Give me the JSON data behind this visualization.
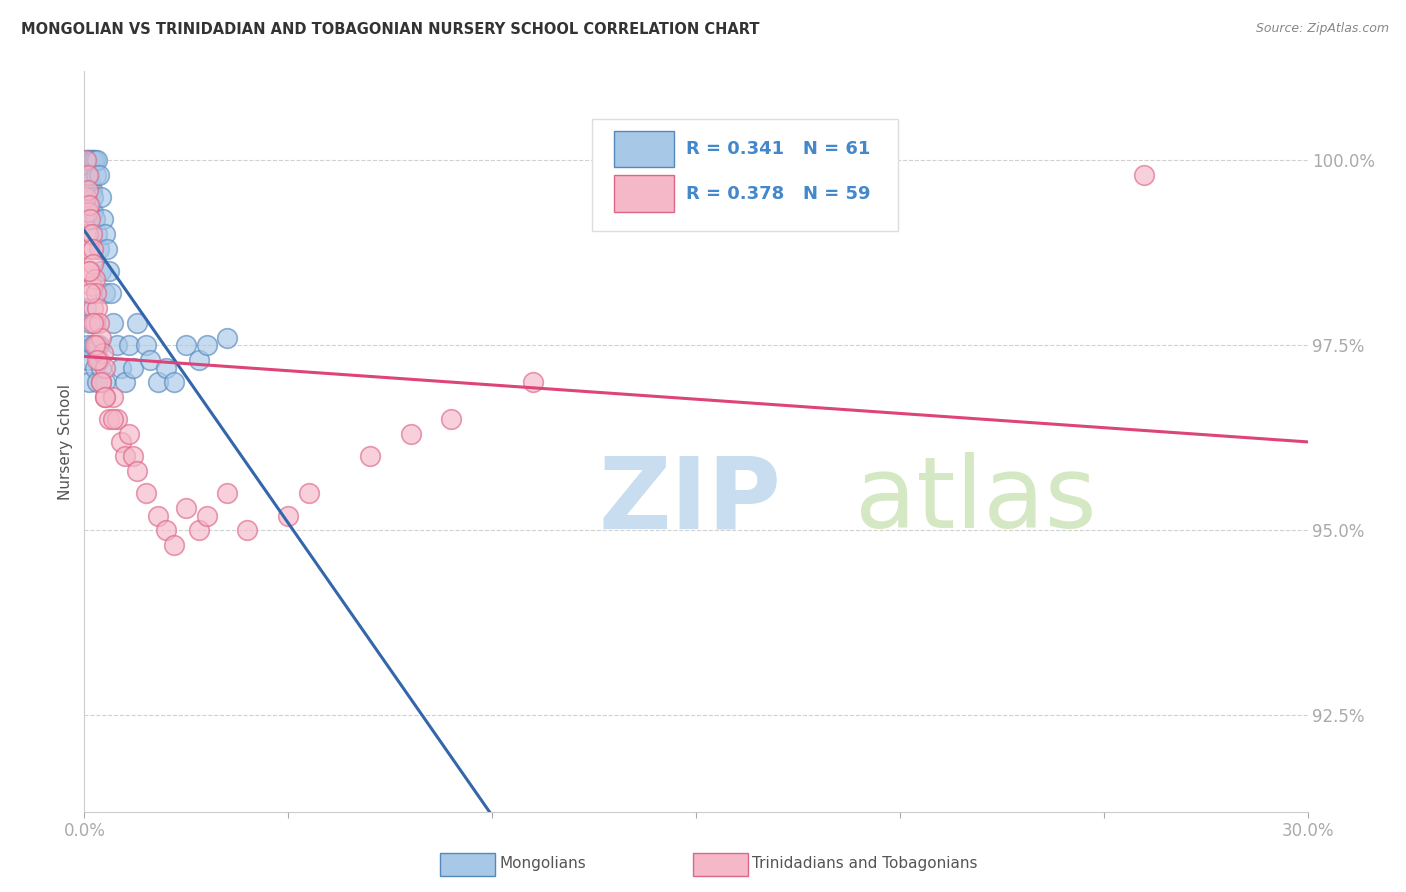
{
  "title": "MONGOLIAN VS TRINIDADIAN AND TOBAGONIAN NURSERY SCHOOL CORRELATION CHART",
  "source": "Source: ZipAtlas.com",
  "ylabel": "Nursery School",
  "ytick_labels": [
    "92.5%",
    "95.0%",
    "97.5%",
    "100.0%"
  ],
  "ytick_positions": [
    92.5,
    95.0,
    97.5,
    100.0
  ],
  "xmin": 0.0,
  "xmax": 30.0,
  "ymin": 91.2,
  "ymax": 101.2,
  "legend_mongolians": "Mongolians",
  "legend_trinidadian": "Trinidadians and Tobagonians",
  "r_mongolian": "0.341",
  "n_mongolian": "61",
  "r_trinidadian": "0.378",
  "n_trinidadian": "59",
  "color_blue_fill": "#a8c8e8",
  "color_blue_edge": "#5588bb",
  "color_pink_fill": "#f4b8c8",
  "color_pink_edge": "#dd6688",
  "color_blue_line": "#3366aa",
  "color_pink_line": "#dd4477",
  "color_blue_text": "#4488cc",
  "color_title": "#333333",
  "color_source": "#888888",
  "color_axis_labels": "#4488cc",
  "watermark_zip_color": "#c8ddf0",
  "watermark_atlas_color": "#d0e8d0",
  "mongolian_x": [
    0.05,
    0.05,
    0.05,
    0.08,
    0.08,
    0.1,
    0.1,
    0.1,
    0.12,
    0.12,
    0.15,
    0.15,
    0.15,
    0.18,
    0.18,
    0.2,
    0.2,
    0.22,
    0.22,
    0.25,
    0.25,
    0.28,
    0.3,
    0.3,
    0.35,
    0.35,
    0.4,
    0.4,
    0.45,
    0.5,
    0.5,
    0.55,
    0.6,
    0.65,
    0.7,
    0.8,
    0.9,
    1.0,
    1.1,
    1.2,
    1.3,
    1.5,
    1.6,
    1.8,
    2.0,
    2.2,
    2.5,
    2.8,
    3.0,
    3.5,
    0.05,
    0.08,
    0.1,
    0.12,
    0.15,
    0.2,
    0.25,
    0.3,
    0.35,
    0.4,
    0.5
  ],
  "mongolian_y": [
    100.0,
    99.8,
    99.5,
    100.0,
    99.7,
    100.0,
    99.9,
    99.6,
    100.0,
    99.8,
    100.0,
    99.7,
    99.4,
    100.0,
    99.6,
    100.0,
    99.5,
    100.0,
    99.3,
    100.0,
    99.2,
    99.8,
    100.0,
    99.0,
    99.8,
    98.8,
    99.5,
    98.5,
    99.2,
    99.0,
    98.2,
    98.8,
    98.5,
    98.2,
    97.8,
    97.5,
    97.2,
    97.0,
    97.5,
    97.2,
    97.8,
    97.5,
    97.3,
    97.0,
    97.2,
    97.0,
    97.5,
    97.3,
    97.5,
    97.6,
    98.0,
    97.5,
    97.3,
    97.0,
    97.8,
    97.5,
    97.2,
    97.0,
    97.5,
    97.2,
    97.0
  ],
  "trinidadian_x": [
    0.05,
    0.05,
    0.08,
    0.08,
    0.1,
    0.1,
    0.12,
    0.12,
    0.15,
    0.15,
    0.18,
    0.18,
    0.2,
    0.2,
    0.22,
    0.25,
    0.25,
    0.28,
    0.3,
    0.3,
    0.35,
    0.35,
    0.4,
    0.4,
    0.45,
    0.5,
    0.5,
    0.6,
    0.7,
    0.8,
    0.9,
    1.0,
    1.1,
    1.2,
    1.3,
    1.5,
    1.8,
    2.0,
    2.2,
    2.5,
    2.8,
    3.0,
    3.5,
    4.0,
    5.0,
    5.5,
    7.0,
    8.0,
    9.0,
    11.0,
    0.12,
    0.15,
    0.2,
    0.25,
    0.3,
    0.4,
    0.5,
    0.7,
    26.0
  ],
  "trinidadian_y": [
    100.0,
    99.5,
    99.8,
    99.3,
    99.6,
    99.0,
    99.4,
    98.8,
    99.2,
    98.5,
    99.0,
    98.3,
    98.8,
    98.0,
    98.6,
    98.4,
    97.8,
    98.2,
    98.0,
    97.5,
    97.8,
    97.3,
    97.6,
    97.0,
    97.4,
    97.2,
    96.8,
    96.5,
    96.8,
    96.5,
    96.2,
    96.0,
    96.3,
    96.0,
    95.8,
    95.5,
    95.2,
    95.0,
    94.8,
    95.3,
    95.0,
    95.2,
    95.5,
    95.0,
    95.2,
    95.5,
    96.0,
    96.3,
    96.5,
    97.0,
    98.5,
    98.2,
    97.8,
    97.5,
    97.3,
    97.0,
    96.8,
    96.5,
    99.8
  ]
}
